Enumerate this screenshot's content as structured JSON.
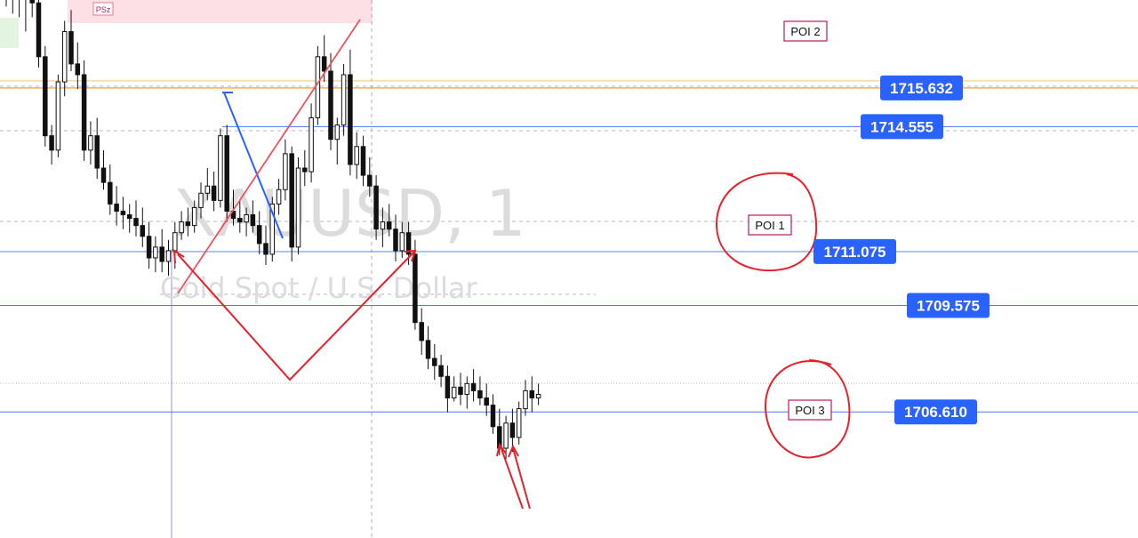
{
  "chart_data": {
    "type": "candlestick",
    "watermark": {
      "symbol": "XAUUSD, 1",
      "description": "Gold Spot / U.S. Dollar"
    },
    "y_range": [
      1703.1,
      1718.08
    ],
    "zone_label": "PSz",
    "price_levels": [
      {
        "value": 1715.632,
        "label": "1715.632",
        "style": "solid",
        "color": "#f2a33a",
        "poi": "POI 2"
      },
      {
        "value": 1714.555,
        "label": "1714.555",
        "style": "solid",
        "color": "#2962ff",
        "poi": ""
      },
      {
        "value": 1711.075,
        "label": "1711.075",
        "style": "solid",
        "color": "#2962ff",
        "poi": "POI 1"
      },
      {
        "value": 1709.575,
        "label": "1709.575",
        "style": "solid",
        "color": "#2962ff",
        "poi": ""
      },
      {
        "value": 1706.61,
        "label": "1706.610",
        "style": "solid",
        "color": "#2962ff",
        "poi": "POI 3"
      }
    ],
    "candles": [
      [
        1718.5,
        1718.9,
        1717.9,
        1718.3
      ],
      [
        1718.3,
        1718.6,
        1717.7,
        1718.2
      ],
      [
        1718.2,
        1718.5,
        1717.6,
        1718.1
      ],
      [
        1718.1,
        1718.8,
        1717.2,
        1718.3
      ],
      [
        1718.3,
        1718.9,
        1717.6,
        1718.0
      ],
      [
        1718.0,
        1718.4,
        1716.2,
        1716.5
      ],
      [
        1716.5,
        1716.8,
        1714.0,
        1714.3
      ],
      [
        1714.3,
        1714.6,
        1713.5,
        1713.9
      ],
      [
        1713.9,
        1716.0,
        1713.7,
        1715.8
      ],
      [
        1715.8,
        1717.5,
        1715.4,
        1717.2
      ],
      [
        1717.2,
        1717.8,
        1716.1,
        1716.3
      ],
      [
        1716.3,
        1716.9,
        1715.6,
        1716.0
      ],
      [
        1716.0,
        1716.4,
        1713.6,
        1713.9
      ],
      [
        1713.9,
        1714.7,
        1713.5,
        1714.3
      ],
      [
        1714.3,
        1714.8,
        1713.1,
        1713.4
      ],
      [
        1713.4,
        1713.9,
        1712.8,
        1713.0
      ],
      [
        1713.0,
        1713.5,
        1712.1,
        1712.4
      ],
      [
        1712.4,
        1712.9,
        1711.8,
        1712.2
      ],
      [
        1712.2,
        1712.6,
        1711.7,
        1712.1
      ],
      [
        1712.1,
        1712.4,
        1711.6,
        1712.0
      ],
      [
        1712.0,
        1712.5,
        1711.5,
        1711.8
      ],
      [
        1711.8,
        1712.3,
        1711.2,
        1711.5
      ],
      [
        1711.5,
        1711.9,
        1710.6,
        1710.9
      ],
      [
        1710.9,
        1711.5,
        1710.5,
        1711.2
      ],
      [
        1711.2,
        1711.7,
        1710.5,
        1710.8
      ],
      [
        1710.8,
        1711.4,
        1710.4,
        1711.1
      ],
      [
        1711.1,
        1711.9,
        1710.6,
        1711.6
      ],
      [
        1711.6,
        1712.2,
        1711.4,
        1711.9
      ],
      [
        1711.9,
        1712.3,
        1711.5,
        1711.8
      ],
      [
        1711.8,
        1712.5,
        1711.6,
        1712.3
      ],
      [
        1712.3,
        1713.0,
        1712.0,
        1712.7
      ],
      [
        1712.7,
        1713.4,
        1712.5,
        1712.9
      ],
      [
        1712.9,
        1713.3,
        1712.2,
        1712.5
      ],
      [
        1712.5,
        1714.5,
        1712.3,
        1714.3
      ],
      [
        1714.3,
        1714.6,
        1711.9,
        1712.2
      ],
      [
        1712.2,
        1712.8,
        1711.8,
        1712.0
      ],
      [
        1712.0,
        1712.5,
        1711.6,
        1711.9
      ],
      [
        1711.9,
        1712.3,
        1711.5,
        1712.1
      ],
      [
        1712.1,
        1712.5,
        1711.6,
        1711.8
      ],
      [
        1711.8,
        1712.2,
        1711.0,
        1711.3
      ],
      [
        1711.3,
        1711.8,
        1710.7,
        1711.0
      ],
      [
        1711.0,
        1712.6,
        1710.8,
        1712.4
      ],
      [
        1712.4,
        1713.1,
        1712.1,
        1712.8
      ],
      [
        1712.8,
        1714.2,
        1712.5,
        1713.8
      ],
      [
        1713.8,
        1714.0,
        1710.8,
        1711.2
      ],
      [
        1711.2,
        1713.7,
        1711.0,
        1713.4
      ],
      [
        1713.4,
        1713.9,
        1712.9,
        1713.3
      ],
      [
        1713.3,
        1715.2,
        1713.0,
        1714.8
      ],
      [
        1714.8,
        1716.8,
        1714.6,
        1716.5
      ],
      [
        1716.5,
        1717.1,
        1715.8,
        1716.1
      ],
      [
        1716.1,
        1716.6,
        1713.9,
        1714.2
      ],
      [
        1714.2,
        1714.8,
        1713.5,
        1714.6
      ],
      [
        1714.6,
        1716.3,
        1714.3,
        1716.0
      ],
      [
        1716.0,
        1716.7,
        1713.2,
        1713.5
      ],
      [
        1713.5,
        1714.4,
        1713.1,
        1714.0
      ],
      [
        1714.0,
        1714.3,
        1712.9,
        1713.2
      ],
      [
        1713.2,
        1713.7,
        1712.6,
        1712.9
      ],
      [
        1712.9,
        1713.2,
        1711.4,
        1711.7
      ],
      [
        1711.7,
        1712.3,
        1711.2,
        1711.9
      ],
      [
        1711.9,
        1712.4,
        1711.5,
        1711.7
      ],
      [
        1711.7,
        1712.1,
        1710.8,
        1711.1
      ],
      [
        1711.1,
        1711.9,
        1710.9,
        1711.6
      ],
      [
        1711.6,
        1711.9,
        1710.7,
        1711.0
      ],
      [
        1711.0,
        1711.4,
        1708.9,
        1709.1
      ],
      [
        1709.1,
        1709.5,
        1708.2,
        1708.6
      ],
      [
        1708.6,
        1709.0,
        1707.8,
        1708.1
      ],
      [
        1708.1,
        1708.5,
        1707.5,
        1707.9
      ],
      [
        1707.9,
        1708.2,
        1707.3,
        1707.6
      ],
      [
        1707.6,
        1707.9,
        1706.6,
        1707.0
      ],
      [
        1707.0,
        1707.6,
        1706.9,
        1707.3
      ],
      [
        1707.3,
        1707.7,
        1706.8,
        1707.1
      ],
      [
        1707.1,
        1707.6,
        1706.7,
        1707.4
      ],
      [
        1707.4,
        1707.8,
        1706.9,
        1707.2
      ],
      [
        1707.2,
        1707.6,
        1706.8,
        1707.0
      ],
      [
        1707.0,
        1707.4,
        1706.5,
        1706.8
      ],
      [
        1706.8,
        1707.1,
        1706.0,
        1706.2
      ],
      [
        1706.2,
        1706.7,
        1705.4,
        1705.6
      ],
      [
        1705.6,
        1706.5,
        1705.3,
        1706.3
      ],
      [
        1706.3,
        1706.7,
        1705.5,
        1705.9
      ],
      [
        1705.9,
        1706.9,
        1705.7,
        1706.7
      ],
      [
        1706.7,
        1707.5,
        1706.5,
        1707.2
      ],
      [
        1707.2,
        1707.6,
        1706.6,
        1707.0
      ],
      [
        1707.0,
        1707.4,
        1706.8,
        1707.1
      ]
    ]
  }
}
